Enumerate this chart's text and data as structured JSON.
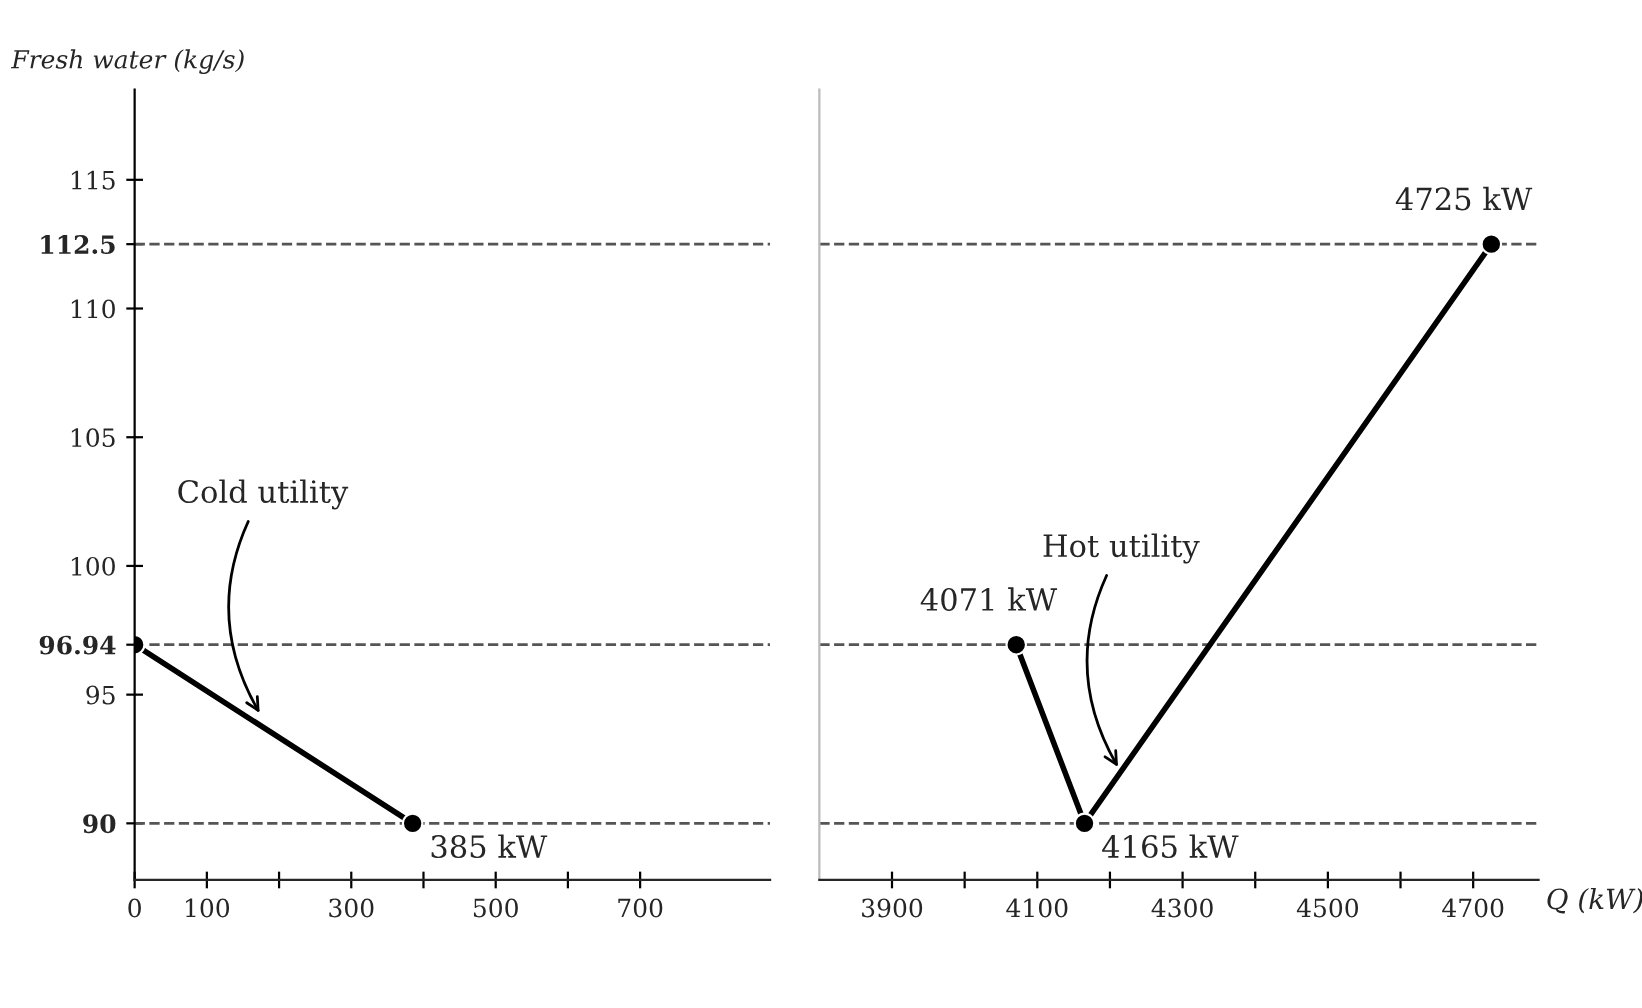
{
  "chart_data": [
    {
      "type": "line",
      "ylabel": "Fresh water (kg/s)",
      "xlim": [
        0,
        880
      ],
      "ylim": [
        87.8,
        118.5
      ],
      "xticks": [
        0,
        100,
        {
          "value": 200,
          "label": null
        },
        300,
        {
          "value": 400,
          "label": null
        },
        500,
        {
          "value": 600,
          "label": null
        },
        700
      ],
      "yticks": [
        90,
        95,
        96.94,
        100,
        105,
        110,
        112.5,
        115
      ],
      "series": [
        {
          "color": "#000000",
          "x": [
            0,
            385
          ],
          "values": [
            96.94,
            90
          ]
        }
      ],
      "marker": "circle",
      "line_style": "solid",
      "grid": false,
      "ref_lines": [
        {
          "axis": "y",
          "value": 112.5,
          "line_style": "dashed",
          "color": "#555555"
        },
        {
          "axis": "y",
          "value": 96.94,
          "line_style": "dashed",
          "color": "#555555"
        },
        {
          "axis": "y",
          "value": 90,
          "line_style": "dashed",
          "color": "#555555"
        }
      ],
      "annotations": [
        {
          "text": "385 kW",
          "x": 385,
          "y": 90
        },
        {
          "text": "Cold utility",
          "x": 177,
          "y": 94.1
        }
      ]
    },
    {
      "type": "line",
      "xlabel": "Q (kW)",
      "xlim": [
        3800,
        4790
      ],
      "ylim": [
        87.8,
        118.5
      ],
      "tick_labels": "x",
      "xticks": [
        3900,
        {
          "value": 4000,
          "label": null
        },
        4100,
        {
          "value": 4200,
          "label": null
        },
        4300,
        {
          "value": 4400,
          "label": null
        },
        4500,
        {
          "value": 4600,
          "label": null
        },
        4700
      ],
      "series": [
        {
          "color": "#000000",
          "x": [
            4071,
            4165,
            4725
          ],
          "values": [
            96.94,
            90,
            112.5
          ]
        }
      ],
      "marker": "circle",
      "line_style": "solid",
      "grid": false,
      "ref_lines": [
        {
          "axis": "y",
          "value": 112.5,
          "line_style": "dashed",
          "color": "#555555"
        },
        {
          "axis": "y",
          "value": 96.94,
          "line_style": "dashed",
          "color": "#555555"
        },
        {
          "axis": "y",
          "value": 90,
          "line_style": "dashed",
          "color": "#555555"
        }
      ],
      "annotations": [
        {
          "text": "4071 kW",
          "x": 4071,
          "y": 96.94
        },
        {
          "text": "4165 kW",
          "x": 4165,
          "y": 90
        },
        {
          "text": "4725 kW",
          "x": 4725,
          "y": 112.5
        },
        {
          "text": "Hot utility",
          "x": 4215,
          "y": 92
        }
      ]
    }
  ]
}
